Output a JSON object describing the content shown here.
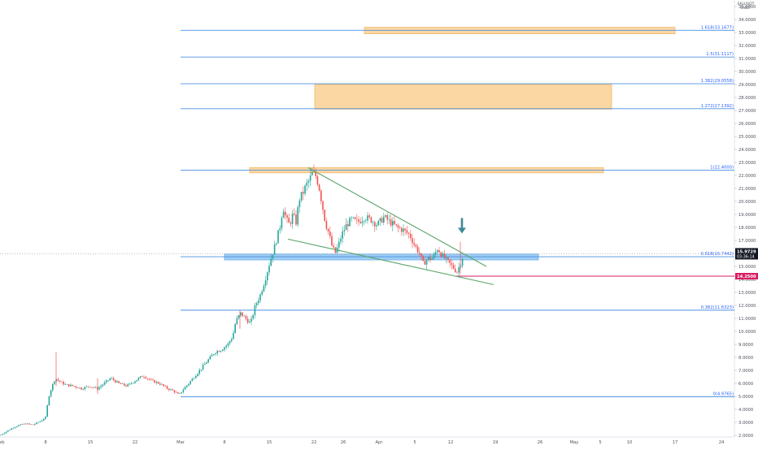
{
  "chart_data": {
    "type": "candlestick",
    "currency": "USDT",
    "currency_extra": "SKLUSDT",
    "last_price": {
      "value": "15.9729",
      "countdown": "03:36:14"
    },
    "stop_price": {
      "value": "14.2500"
    },
    "y_ticks": [
      "35.0000",
      "34.0000",
      "33.0000",
      "32.0000",
      "31.0000",
      "30.0000",
      "29.0000",
      "28.0000",
      "27.0000",
      "26.0000",
      "25.0000",
      "24.0000",
      "23.0000",
      "22.0000",
      "21.0000",
      "20.0000",
      "19.0000",
      "18.0000",
      "17.0000",
      "16.0000",
      "15.0000",
      "14.0000",
      "13.0000",
      "12.0000",
      "11.0000",
      "10.0000",
      "9.0000",
      "8.0000",
      "7.0000",
      "6.0000",
      "5.0000",
      "4.0000",
      "3.0000",
      "2.0000"
    ],
    "x_ticks": [
      "Feb",
      "8",
      "15",
      "22",
      "Mar",
      "8",
      "15",
      "22",
      "26",
      "Apr",
      "5",
      "12",
      "19",
      "26",
      "May",
      "5",
      "10",
      "17",
      "24"
    ],
    "fib_levels": [
      {
        "label": "1.618(33.1677)",
        "value": 33.1677
      },
      {
        "label": "1.5(31.1117)",
        "value": 31.1117
      },
      {
        "label": "1.382(29.0558)",
        "value": 29.0558
      },
      {
        "label": "1.272(27.1392)",
        "value": 27.1392
      },
      {
        "label": "1(22.4000)",
        "value": 22.4
      },
      {
        "label": "0.618(15.7442)",
        "value": 15.7442
      },
      {
        "label": "0.382(11.6323)",
        "value": 11.6323
      },
      {
        "label": "0(4.9765)",
        "value": 4.9765
      }
    ],
    "zones": [
      {
        "name": "target-zone-top",
        "color": "#fbd7a3",
        "low": 32.9,
        "high": 33.4
      },
      {
        "name": "target-zone-middle",
        "color": "#fbd7a3",
        "low": 27.1,
        "high": 29.0
      },
      {
        "name": "resistance-zone",
        "color": "#fbd7a3",
        "low": 22.2,
        "high": 22.6
      },
      {
        "name": "support-zone",
        "color": "#9fcdf3",
        "low": 15.5,
        "high": 15.95
      }
    ],
    "price_path": [
      [
        0,
        2.0
      ],
      [
        8,
        2.3
      ],
      [
        16,
        2.6
      ],
      [
        24,
        2.8
      ],
      [
        32,
        2.9
      ],
      [
        40,
        2.8
      ],
      [
        50,
        3.1
      ],
      [
        56,
        3.4
      ],
      [
        60,
        5.0
      ],
      [
        64,
        5.8
      ],
      [
        68,
        6.4
      ],
      [
        72,
        6.2
      ],
      [
        80,
        5.9
      ],
      [
        90,
        5.8
      ],
      [
        100,
        5.6
      ],
      [
        110,
        5.8
      ],
      [
        120,
        5.6
      ],
      [
        128,
        6.0
      ],
      [
        136,
        6.4
      ],
      [
        146,
        6.0
      ],
      [
        156,
        5.8
      ],
      [
        166,
        6.2
      ],
      [
        176,
        6.6
      ],
      [
        186,
        6.2
      ],
      [
        196,
        6.0
      ],
      [
        206,
        5.6
      ],
      [
        214,
        5.4
      ],
      [
        220,
        5.1
      ],
      [
        226,
        5.6
      ],
      [
        232,
        6.0
      ],
      [
        240,
        6.6
      ],
      [
        248,
        7.2
      ],
      [
        256,
        7.8
      ],
      [
        264,
        8.4
      ],
      [
        272,
        8.6
      ],
      [
        280,
        9.0
      ],
      [
        286,
        9.6
      ],
      [
        290,
        10.8
      ],
      [
        296,
        11.4
      ],
      [
        302,
        11.0
      ],
      [
        308,
        10.6
      ],
      [
        314,
        12.0
      ],
      [
        320,
        12.8
      ],
      [
        326,
        14.0
      ],
      [
        332,
        15.4
      ],
      [
        338,
        16.6
      ],
      [
        344,
        18.0
      ],
      [
        348,
        19.6
      ],
      [
        352,
        18.6
      ],
      [
        356,
        18.2
      ],
      [
        360,
        19.0
      ],
      [
        364,
        18.4
      ],
      [
        368,
        20.2
      ],
      [
        372,
        20.6
      ],
      [
        376,
        21.2
      ],
      [
        380,
        21.6
      ],
      [
        384,
        22.2
      ],
      [
        388,
        22.0
      ],
      [
        392,
        21.2
      ],
      [
        396,
        19.8
      ],
      [
        400,
        18.4
      ],
      [
        404,
        17.6
      ],
      [
        408,
        16.6
      ],
      [
        412,
        16.0
      ],
      [
        416,
        16.6
      ],
      [
        420,
        17.4
      ],
      [
        426,
        18.2
      ],
      [
        432,
        18.6
      ],
      [
        440,
        18.4
      ],
      [
        448,
        18.8
      ],
      [
        456,
        18.6
      ],
      [
        464,
        18.2
      ],
      [
        472,
        18.8
      ],
      [
        480,
        18.4
      ],
      [
        488,
        18.0
      ],
      [
        496,
        17.8
      ],
      [
        504,
        17.4
      ],
      [
        510,
        16.6
      ],
      [
        516,
        16.0
      ],
      [
        520,
        15.2
      ],
      [
        526,
        15.6
      ],
      [
        532,
        15.6
      ],
      [
        538,
        16.4
      ],
      [
        544,
        15.8
      ],
      [
        550,
        15.4
      ],
      [
        556,
        15.0
      ],
      [
        562,
        14.6
      ],
      [
        566,
        15.2
      ],
      [
        570,
        15.97
      ]
    ],
    "trendlines": [
      {
        "name": "upper-wedge-line",
        "color": "#5aa469",
        "points": [
          [
            379,
            22.6
          ],
          [
            598,
            15.0
          ]
        ]
      },
      {
        "name": "lower-wedge-line",
        "color": "#5aa469",
        "points": [
          [
            354,
            17.1
          ],
          [
            607,
            13.6
          ]
        ]
      }
    ],
    "markers": [
      {
        "name": "down-arrow",
        "color": "#3f8a98",
        "x": 568,
        "y": 17.6
      }
    ]
  }
}
